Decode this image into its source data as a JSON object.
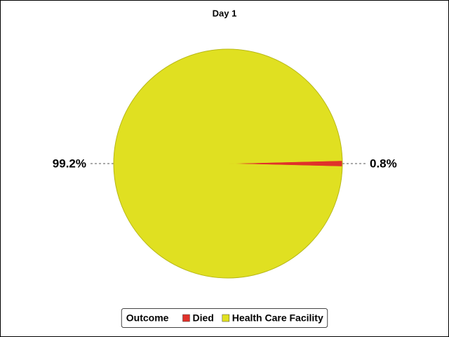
{
  "chart_data": {
    "type": "pie",
    "title": "Day 1",
    "legend_title": "Outcome",
    "categories": [
      "Died",
      "Health Care Facility"
    ],
    "values": [
      0.8,
      99.2
    ],
    "value_labels": [
      "0.8%",
      "99.2%"
    ],
    "colors": [
      "#e0312a",
      "#e0e021"
    ]
  }
}
